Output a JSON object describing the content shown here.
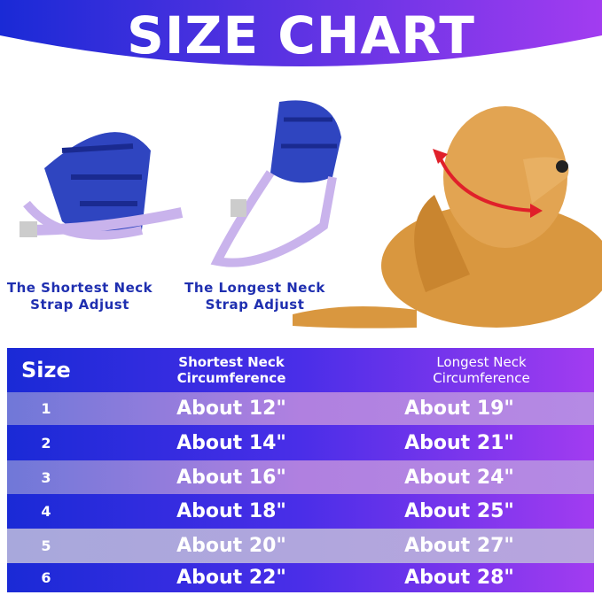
{
  "title": "SIZE CHART",
  "captions": {
    "shortest": "The Shortest Neck Strap Adjust",
    "longest": "The Longest Neck Strap Adjust"
  },
  "colors": {
    "blue": "#1a2ad6",
    "purple": "#a23cf0",
    "caption": "#1f2fb0",
    "arrow": "#e0202a"
  },
  "table": {
    "headers": [
      "Size",
      "Shortest Neck Circumference",
      "Longest Neck Circumference"
    ],
    "rows": [
      [
        "1",
        "About 12\"",
        "About 19\""
      ],
      [
        "2",
        "About 14\"",
        "About 21\""
      ],
      [
        "3",
        "About 16\"",
        "About 24\""
      ],
      [
        "4",
        "About 18\"",
        "About 25\""
      ],
      [
        "5",
        "About 20\"",
        "About 27\""
      ],
      [
        "6",
        "About 22\"",
        "About 28\""
      ]
    ]
  }
}
